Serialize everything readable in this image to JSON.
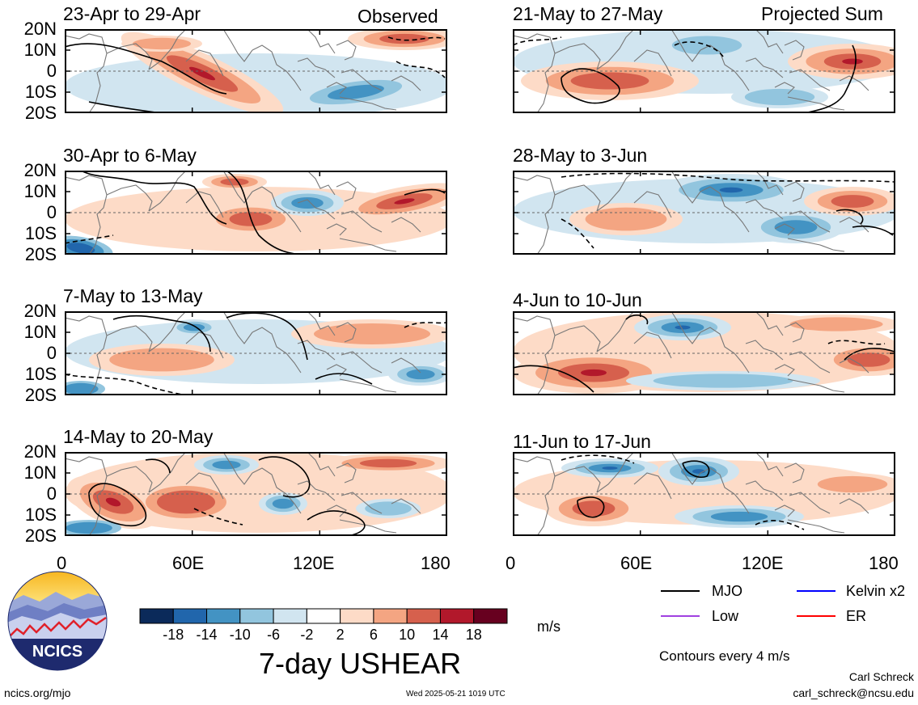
{
  "header": {
    "left_label": "Observed",
    "right_label": "Projected Sum"
  },
  "panels": [
    {
      "title": "23-Apr to 29-Apr",
      "column": "observed"
    },
    {
      "title": "30-Apr to 6-May",
      "column": "observed"
    },
    {
      "title": "7-May to 13-May",
      "column": "observed"
    },
    {
      "title": "14-May to 20-May",
      "column": "observed"
    },
    {
      "title": "21-May to 27-May",
      "column": "projected"
    },
    {
      "title": "28-May to 3-Jun",
      "column": "projected"
    },
    {
      "title": "4-Jun to 10-Jun",
      "column": "projected"
    },
    {
      "title": "11-Jun to 17-Jun",
      "column": "projected"
    }
  ],
  "y_ticks": [
    "20N",
    "10N",
    "0",
    "10S",
    "20S"
  ],
  "x_ticks": [
    "0",
    "60E",
    "120E",
    "180"
  ],
  "colorbar": {
    "colors": [
      "#0b2a5a",
      "#2166ac",
      "#4393c3",
      "#92c5de",
      "#d1e5f0",
      "#ffffff",
      "#fddbc7",
      "#f4a582",
      "#d6604d",
      "#b2182b",
      "#67001f"
    ],
    "ticks": [
      "-18",
      "-14",
      "-10",
      "-6",
      "-2",
      "2",
      "6",
      "10",
      "14",
      "18"
    ],
    "units": "m/s",
    "title": "7-day USHEAR"
  },
  "legend": {
    "items": [
      {
        "label": "MJO",
        "color": "#000000"
      },
      {
        "label": "Kelvin x2",
        "color": "#0000ff"
      },
      {
        "label": "Low",
        "color": "#a040e0"
      },
      {
        "label": "ER",
        "color": "#ff0000"
      }
    ],
    "contour_note": "Contours every 4 m/s"
  },
  "logo": {
    "text": "NCICS"
  },
  "footer": {
    "url": "ncics.org/mjo",
    "timestamp": "Wed 2025-05-21 1019 UTC",
    "author": "Carl Schreck",
    "email": "carl_schreck@ncsu.edu"
  }
}
